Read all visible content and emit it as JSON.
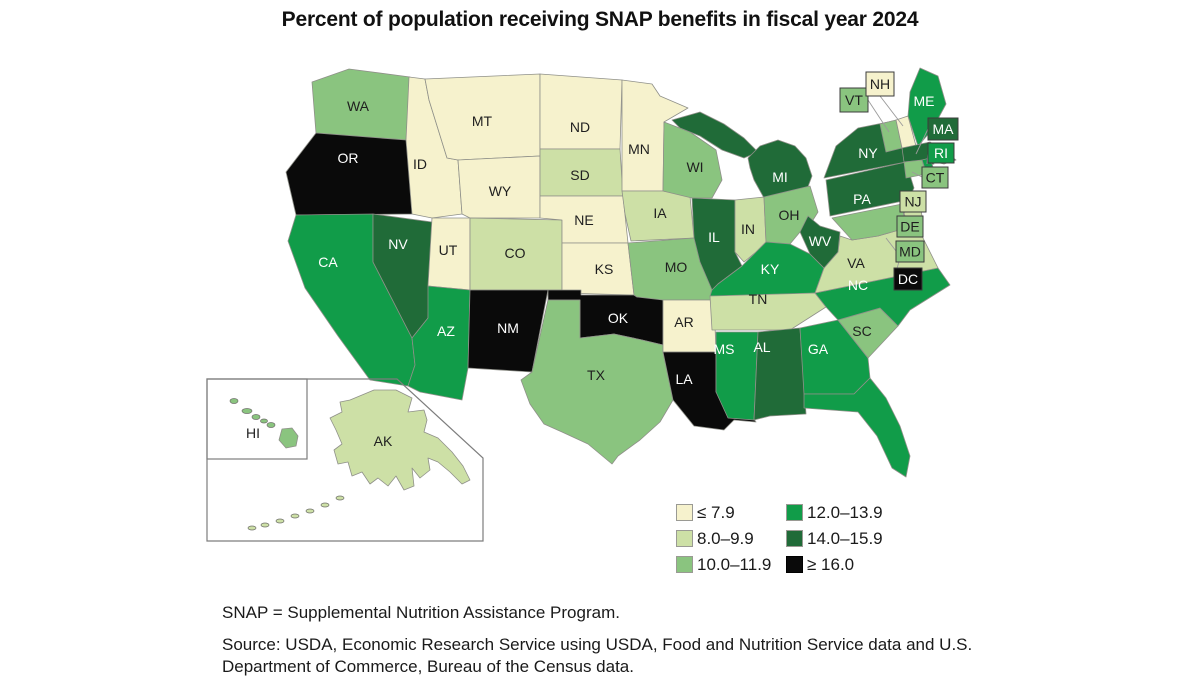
{
  "title": "Percent of population receiving SNAP benefits in fiscal year 2024",
  "legend": {
    "items": [
      {
        "label": "≤ 7.9",
        "color": "#F6F2CD"
      },
      {
        "label": "8.0–9.9",
        "color": "#CDE0A6"
      },
      {
        "label": "10.0–11.9",
        "color": "#8AC47F"
      },
      {
        "label": "12.0–13.9",
        "color": "#119C49"
      },
      {
        "label": "14.0–15.9",
        "color": "#206B38"
      },
      {
        "label": "≥ 16.0",
        "color": "#0A0A0A"
      }
    ]
  },
  "footnotes": {
    "line1": "SNAP = Supplemental Nutrition Assistance Program.",
    "source": "Source: USDA, Economic Research Service using USDA, Food and Nutrition Service data and U.S. Department of Commerce, Bureau of the Census data."
  },
  "chart_data": {
    "type": "choropleth_map",
    "title": "Percent of population receiving SNAP benefits in fiscal year 2024",
    "unit": "percent of state population receiving SNAP benefits",
    "legend_buckets": [
      {
        "label": "≤ 7.9",
        "color": "#F6F2CD"
      },
      {
        "label": "8.0–9.9",
        "color": "#CDE0A6"
      },
      {
        "label": "10.0–11.9",
        "color": "#8AC47F"
      },
      {
        "label": "12.0–13.9",
        "color": "#119C49"
      },
      {
        "label": "14.0–15.9",
        "color": "#206B38"
      },
      {
        "label": "≥ 16.0",
        "color": "#0A0A0A"
      }
    ],
    "states": [
      {
        "abbr": "WA",
        "bucket": "10.0–11.9",
        "bucket_index": 2
      },
      {
        "abbr": "OR",
        "bucket": "≥ 16.0",
        "bucket_index": 5
      },
      {
        "abbr": "CA",
        "bucket": "12.0–13.9",
        "bucket_index": 3
      },
      {
        "abbr": "NV",
        "bucket": "14.0–15.9",
        "bucket_index": 4
      },
      {
        "abbr": "ID",
        "bucket": "≤ 7.9",
        "bucket_index": 0
      },
      {
        "abbr": "MT",
        "bucket": "≤ 7.9",
        "bucket_index": 0
      },
      {
        "abbr": "WY",
        "bucket": "≤ 7.9",
        "bucket_index": 0
      },
      {
        "abbr": "UT",
        "bucket": "≤ 7.9",
        "bucket_index": 0
      },
      {
        "abbr": "CO",
        "bucket": "8.0–9.9",
        "bucket_index": 1
      },
      {
        "abbr": "AZ",
        "bucket": "12.0–13.9",
        "bucket_index": 3
      },
      {
        "abbr": "NM",
        "bucket": "≥ 16.0",
        "bucket_index": 5
      },
      {
        "abbr": "ND",
        "bucket": "≤ 7.9",
        "bucket_index": 0
      },
      {
        "abbr": "SD",
        "bucket": "8.0–9.9",
        "bucket_index": 1
      },
      {
        "abbr": "NE",
        "bucket": "≤ 7.9",
        "bucket_index": 0
      },
      {
        "abbr": "KS",
        "bucket": "≤ 7.9",
        "bucket_index": 0
      },
      {
        "abbr": "OK",
        "bucket": "≥ 16.0",
        "bucket_index": 5
      },
      {
        "abbr": "TX",
        "bucket": "10.0–11.9",
        "bucket_index": 2
      },
      {
        "abbr": "MN",
        "bucket": "≤ 7.9",
        "bucket_index": 0
      },
      {
        "abbr": "IA",
        "bucket": "8.0–9.9",
        "bucket_index": 1
      },
      {
        "abbr": "MO",
        "bucket": "10.0–11.9",
        "bucket_index": 2
      },
      {
        "abbr": "AR",
        "bucket": "≤ 7.9",
        "bucket_index": 0
      },
      {
        "abbr": "LA",
        "bucket": "≥ 16.0",
        "bucket_index": 5
      },
      {
        "abbr": "WI",
        "bucket": "10.0–11.9",
        "bucket_index": 2
      },
      {
        "abbr": "IL",
        "bucket": "14.0–15.9",
        "bucket_index": 4
      },
      {
        "abbr": "IN",
        "bucket": "8.0–9.9",
        "bucket_index": 1
      },
      {
        "abbr": "MI",
        "bucket": "14.0–15.9",
        "bucket_index": 4
      },
      {
        "abbr": "OH",
        "bucket": "10.0–11.9",
        "bucket_index": 2
      },
      {
        "abbr": "KY",
        "bucket": "12.0–13.9",
        "bucket_index": 3
      },
      {
        "abbr": "TN",
        "bucket": "8.0–9.9",
        "bucket_index": 1
      },
      {
        "abbr": "MS",
        "bucket": "12.0–13.9",
        "bucket_index": 3
      },
      {
        "abbr": "AL",
        "bucket": "14.0–15.9",
        "bucket_index": 4
      },
      {
        "abbr": "GA",
        "bucket": "12.0–13.9",
        "bucket_index": 3
      },
      {
        "abbr": "FL",
        "bucket": "12.0–13.9",
        "bucket_index": 3
      },
      {
        "abbr": "SC",
        "bucket": "10.0–11.9",
        "bucket_index": 2
      },
      {
        "abbr": "NC",
        "bucket": "12.0–13.9",
        "bucket_index": 3
      },
      {
        "abbr": "VA",
        "bucket": "8.0–9.9",
        "bucket_index": 1
      },
      {
        "abbr": "WV",
        "bucket": "14.0–15.9",
        "bucket_index": 4
      },
      {
        "abbr": "PA",
        "bucket": "14.0–15.9",
        "bucket_index": 4
      },
      {
        "abbr": "NY",
        "bucket": "14.0–15.9",
        "bucket_index": 4
      },
      {
        "abbr": "NJ",
        "bucket": "8.0–9.9",
        "bucket_index": 1
      },
      {
        "abbr": "DE",
        "bucket": "10.0–11.9",
        "bucket_index": 2
      },
      {
        "abbr": "MD",
        "bucket": "10.0–11.9",
        "bucket_index": 2
      },
      {
        "abbr": "DC",
        "bucket": "≥ 16.0",
        "bucket_index": 5
      },
      {
        "abbr": "VT",
        "bucket": "10.0–11.9",
        "bucket_index": 2
      },
      {
        "abbr": "NH",
        "bucket": "≤ 7.9",
        "bucket_index": 0
      },
      {
        "abbr": "MA",
        "bucket": "14.0–15.9",
        "bucket_index": 4
      },
      {
        "abbr": "RI",
        "bucket": "12.0–13.9",
        "bucket_index": 3
      },
      {
        "abbr": "CT",
        "bucket": "10.0–11.9",
        "bucket_index": 2
      },
      {
        "abbr": "ME",
        "bucket": "12.0–13.9",
        "bucket_index": 3
      },
      {
        "abbr": "AK",
        "bucket": "8.0–9.9",
        "bucket_index": 1
      },
      {
        "abbr": "HI",
        "bucket": "10.0–11.9",
        "bucket_index": 2
      }
    ]
  }
}
